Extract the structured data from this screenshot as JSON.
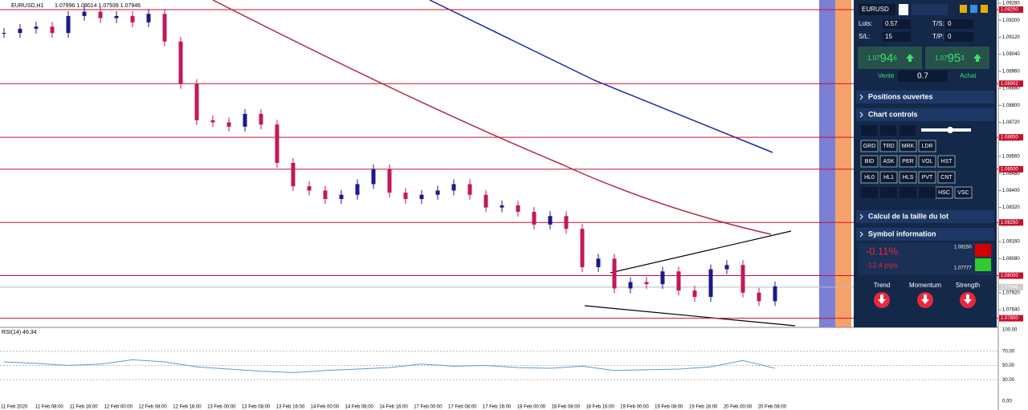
{
  "header": {
    "symbol": "EURUSD,H1",
    "ohlc": "1.07996 1.08014 1.07939 1.07946"
  },
  "price_axis": {
    "ticks": [
      "1.09280",
      "1.09200",
      "1.09120",
      "1.09040",
      "1.08960",
      "1.08880",
      "1.08800",
      "1.08720",
      "1.08640",
      "1.08560",
      "1.08480",
      "1.08400",
      "1.08320",
      "1.08240",
      "1.08160",
      "1.08080",
      "1.08000",
      "1.07920",
      "1.07840"
    ],
    "levels": [
      "1.09250",
      "1.08902",
      "1.08650",
      "1.08500",
      "1.08250",
      "1.08000",
      "1.07800"
    ],
    "current": "1.07946"
  },
  "price_series": {
    "closes": [
      1.0914,
      1.0916,
      1.0917,
      1.0914,
      1.0922,
      1.0924,
      1.0921,
      1.0922,
      1.0919,
      1.0923,
      1.091,
      1.089,
      1.0873,
      1.0872,
      1.087,
      1.0876,
      1.0871,
      1.0853,
      1.0842,
      1.084,
      1.0836,
      1.0838,
      1.0843,
      1.085,
      1.0839,
      1.0836,
      1.0838,
      1.084,
      1.0843,
      1.0838,
      1.0832,
      1.0833,
      1.083,
      1.0824,
      1.0828,
      1.0822,
      1.0804,
      1.0808,
      1.0794,
      1.0797,
      1.0796,
      1.0802,
      1.0793,
      1.079,
      1.0803,
      1.0805,
      1.0792,
      1.0788,
      1.0795
    ]
  },
  "rsi": {
    "label": "RSI(14) 46.34",
    "ticks": [
      "100.00",
      "70.00",
      "50.00",
      "30.00",
      "0.00"
    ],
    "values": [
      55,
      53,
      50,
      52,
      58,
      55,
      48,
      45,
      42,
      40,
      43,
      45,
      47,
      52,
      49,
      50,
      47,
      46,
      49,
      43,
      44,
      45,
      48,
      57,
      46
    ]
  },
  "time_axis": [
    "11 Feb 2020",
    "11 Feb 08:00",
    "11 Feb 16:00",
    "12 Feb 00:00",
    "12 Feb 08:00",
    "12 Feb 16:00",
    "13 Feb 00:00",
    "13 Feb 08:00",
    "13 Feb 16:00",
    "14 Feb 00:00",
    "14 Feb 08:00",
    "14 Feb 16:00",
    "17 Feb 00:00",
    "17 Feb 08:00",
    "17 Feb 16:00",
    "18 Feb 00:00",
    "18 Feb 08:00",
    "18 Feb 16:00",
    "19 Feb 00:00",
    "19 Feb 08:00",
    "19 Feb 16:00",
    "20 Feb 00:00",
    "20 Feb 08:00"
  ],
  "panel": {
    "symbol": "EURUSD",
    "lots_label": "Lots:",
    "lots": "0.57",
    "ts_label": "T/S:",
    "ts": "0",
    "sl_label": "S/L:",
    "sl": "15",
    "tp_label": "T/P:",
    "tp": "0",
    "sell": {
      "prefix": "1.07",
      "big": "94",
      "suffix": "6"
    },
    "buy": {
      "prefix": "1.07",
      "big": "95",
      "suffix": "3"
    },
    "sell_label": "Vente",
    "spread": "0.7",
    "buy_label": "Achat",
    "sections": [
      "Positions ouvertes",
      "Chart controls",
      "Calcul de la taille du lot",
      "Symbol information"
    ],
    "buttons": [
      [
        "GRD",
        "TRD",
        "MRK",
        "LDR"
      ],
      [
        "BID",
        "ASK",
        "PER",
        "VOL",
        "HST"
      ],
      [
        "HL0",
        "HL1",
        "HLS",
        "PVT",
        "CNT"
      ],
      [
        "HSC",
        "VSC"
      ]
    ],
    "symbol_info": {
      "change": "-0.11%",
      "pips": "-12.4 pips",
      "high": "1.08150",
      "low": "1.07777",
      "indicators": [
        "Trend",
        "Momentum",
        "Strength"
      ]
    }
  }
}
